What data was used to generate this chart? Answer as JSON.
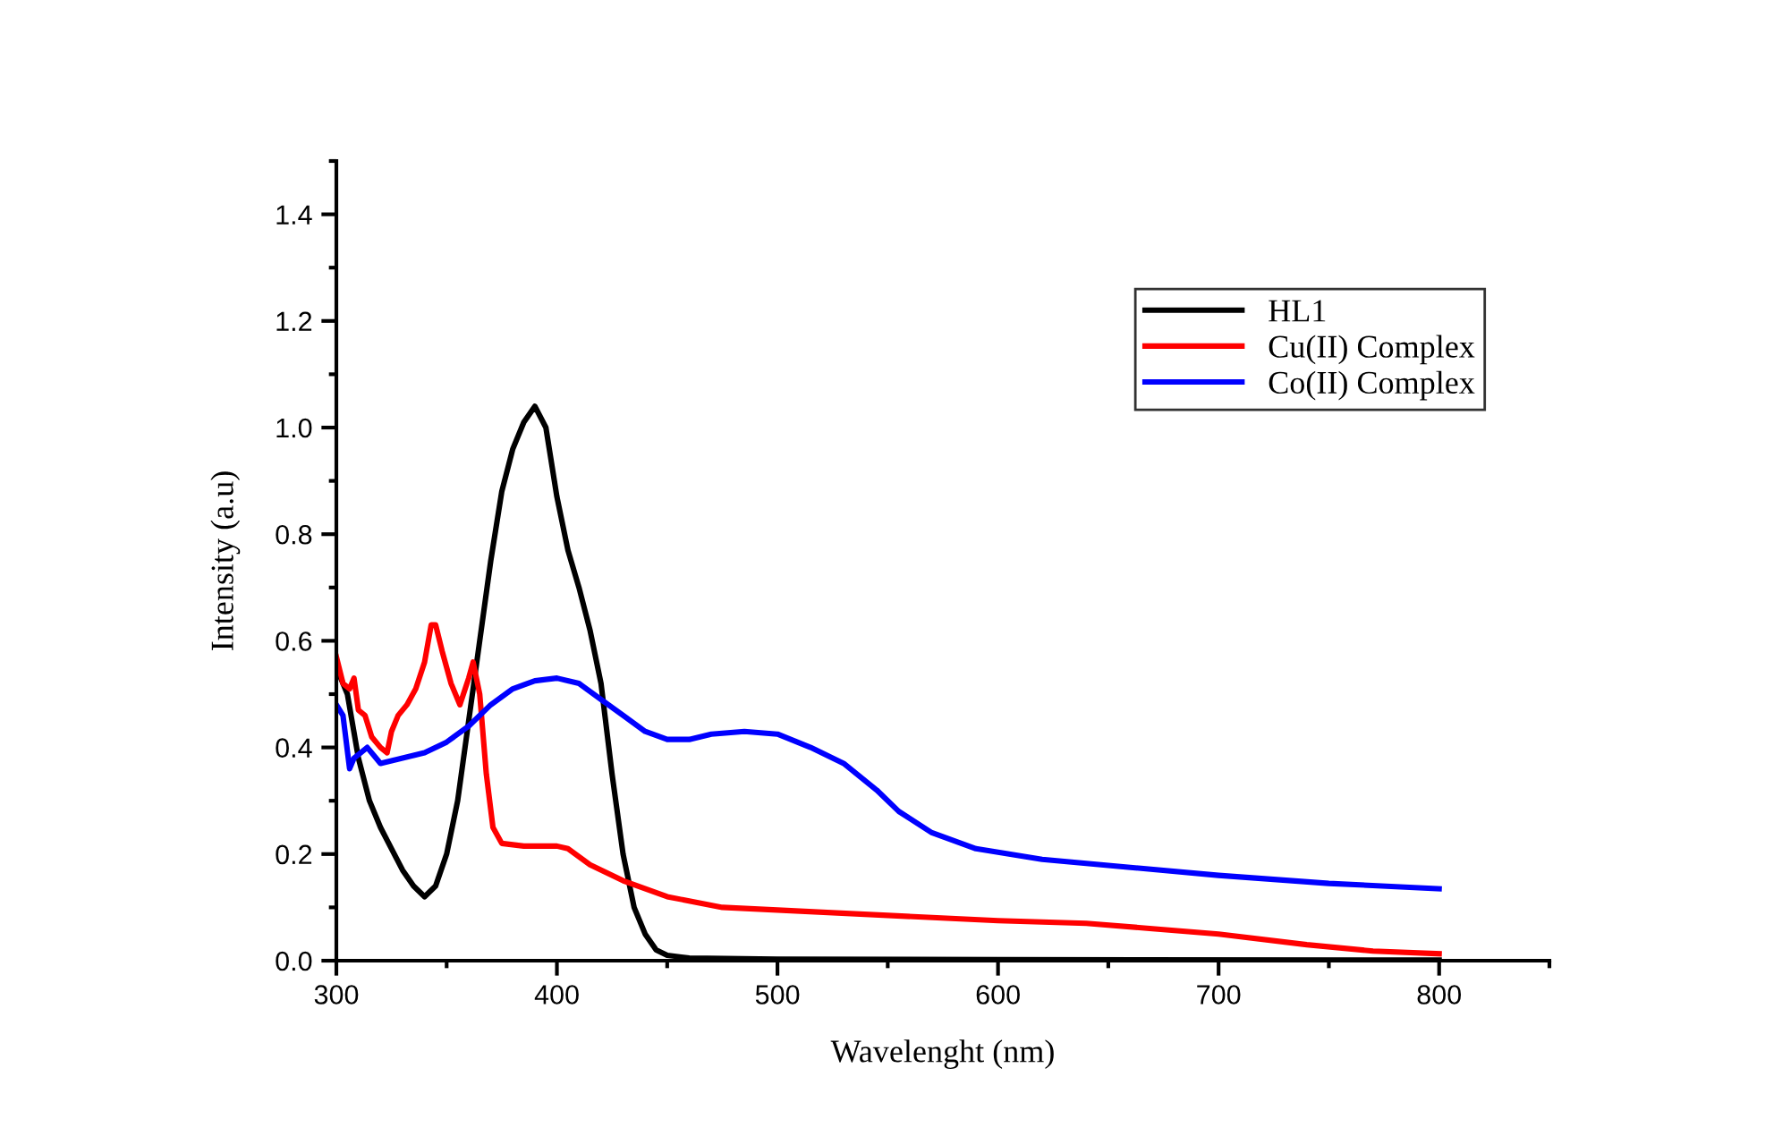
{
  "chart_data": {
    "type": "line",
    "xlabel": "Wavelenght (nm)",
    "ylabel": "Intensity (a.u)",
    "xlim": [
      300,
      850
    ],
    "xticks": [
      300,
      400,
      500,
      600,
      700,
      800
    ],
    "ylim": [
      0,
      1.5
    ],
    "yticks": [
      {
        "value": 0,
        "label": "0.0"
      },
      0.2,
      0.4,
      0.6,
      0.8,
      {
        "value": 1,
        "label": "1.0"
      },
      1.2,
      1.4
    ],
    "grid": false,
    "legend": "top right",
    "marker": "none",
    "line_style": "solid",
    "series": [
      {
        "name": "HL1",
        "color": "#000000",
        "x": [
          300,
          305,
          310,
          315,
          320,
          325,
          330,
          335,
          340,
          345,
          350,
          355,
          360,
          365,
          370,
          375,
          380,
          385,
          390,
          395,
          400,
          405,
          410,
          415,
          420,
          425,
          430,
          435,
          440,
          445,
          450,
          460,
          500,
          600,
          800
        ],
        "values": [
          0.55,
          0.5,
          0.38,
          0.3,
          0.25,
          0.21,
          0.17,
          0.14,
          0.12,
          0.14,
          0.2,
          0.3,
          0.45,
          0.6,
          0.75,
          0.88,
          0.96,
          1.01,
          1.04,
          1.0,
          0.87,
          0.77,
          0.7,
          0.62,
          0.52,
          0.35,
          0.2,
          0.1,
          0.05,
          0.02,
          0.01,
          0.005,
          0.003,
          0.002,
          0.001
        ]
      },
      {
        "name": "Cu(II) Complex",
        "color": "#ff0000",
        "x": [
          300,
          303,
          306,
          308,
          310,
          313,
          316,
          320,
          323,
          325,
          328,
          332,
          336,
          340,
          343,
          345,
          348,
          352,
          356,
          360,
          362,
          365,
          368,
          371,
          375,
          385,
          400,
          405,
          415,
          430,
          450,
          475,
          500,
          550,
          600,
          640,
          670,
          700,
          740,
          770,
          800
        ],
        "values": [
          0.57,
          0.52,
          0.51,
          0.53,
          0.47,
          0.46,
          0.42,
          0.4,
          0.39,
          0.43,
          0.46,
          0.48,
          0.51,
          0.56,
          0.63,
          0.63,
          0.58,
          0.52,
          0.48,
          0.53,
          0.56,
          0.5,
          0.35,
          0.25,
          0.22,
          0.215,
          0.215,
          0.21,
          0.18,
          0.15,
          0.12,
          0.1,
          0.095,
          0.085,
          0.075,
          0.07,
          0.06,
          0.05,
          0.03,
          0.018,
          0.013
        ]
      },
      {
        "name": "Co(II) Complex",
        "color": "#0000ff",
        "x": [
          300,
          303,
          306,
          308,
          311,
          314,
          318,
          320,
          330,
          340,
          350,
          360,
          370,
          380,
          390,
          400,
          410,
          420,
          430,
          440,
          450,
          460,
          470,
          485,
          500,
          515,
          530,
          545,
          555,
          570,
          590,
          620,
          660,
          700,
          750,
          800
        ],
        "values": [
          0.48,
          0.46,
          0.36,
          0.38,
          0.39,
          0.4,
          0.38,
          0.37,
          0.38,
          0.39,
          0.41,
          0.44,
          0.48,
          0.51,
          0.525,
          0.53,
          0.52,
          0.49,
          0.46,
          0.43,
          0.415,
          0.415,
          0.425,
          0.43,
          0.425,
          0.4,
          0.37,
          0.32,
          0.28,
          0.24,
          0.21,
          0.19,
          0.175,
          0.16,
          0.145,
          0.135
        ]
      }
    ]
  }
}
